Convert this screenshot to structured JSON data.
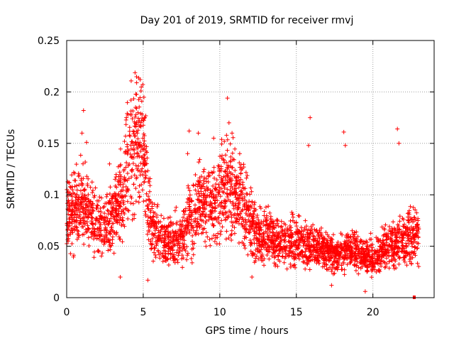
{
  "chart_data": {
    "type": "scatter",
    "title": "Day 201 of 2019, SRMTID for receiver rmvj",
    "xlabel": "GPS time / hours",
    "ylabel": "SRMTID / TECUs",
    "xlim": [
      0,
      24
    ],
    "ylim": [
      0,
      0.25
    ],
    "x_ticks": [
      0,
      5,
      10,
      15,
      20
    ],
    "x_tick_labels": [
      "0",
      "5",
      "10",
      "15",
      "20"
    ],
    "y_ticks": [
      0,
      0.05,
      0.1,
      0.15,
      0.2,
      0.25
    ],
    "y_tick_labels": [
      "0",
      "0.05",
      "0.1",
      "0.15",
      "0.2",
      "0.25"
    ],
    "grid": true,
    "marker": "plus",
    "color": "#ff0000",
    "trend": {
      "x": [
        0,
        0.5,
        1,
        1.5,
        2,
        2.5,
        3,
        3.5,
        4,
        4.5,
        5,
        5.5,
        6,
        6.5,
        7,
        7.5,
        8,
        8.5,
        9,
        9.5,
        10,
        10.5,
        11,
        11.5,
        12,
        12.5,
        13,
        13.5,
        14,
        14.5,
        15,
        15.5,
        16,
        16.5,
        17,
        17.5,
        18,
        18.5,
        19,
        19.5,
        20,
        20.5,
        21,
        21.5,
        22,
        22.5,
        23
      ],
      "y": [
        0.075,
        0.085,
        0.09,
        0.082,
        0.072,
        0.07,
        0.08,
        0.095,
        0.13,
        0.15,
        0.15,
        0.07,
        0.06,
        0.055,
        0.055,
        0.06,
        0.075,
        0.085,
        0.095,
        0.09,
        0.1,
        0.11,
        0.1,
        0.09,
        0.075,
        0.06,
        0.06,
        0.058,
        0.055,
        0.055,
        0.055,
        0.052,
        0.05,
        0.048,
        0.045,
        0.042,
        0.045,
        0.048,
        0.045,
        0.04,
        0.04,
        0.045,
        0.05,
        0.052,
        0.055,
        0.06,
        0.055
      ]
    },
    "highlights": [
      {
        "x": 1.1,
        "y": 0.182
      },
      {
        "x": 1.3,
        "y": 0.151
      },
      {
        "x": 1.0,
        "y": 0.16
      },
      {
        "x": 4.2,
        "y": 0.192
      },
      {
        "x": 4.8,
        "y": 0.212
      },
      {
        "x": 4.85,
        "y": 0.201
      },
      {
        "x": 4.5,
        "y": 0.185
      },
      {
        "x": 3.9,
        "y": 0.175
      },
      {
        "x": 5.1,
        "y": 0.175
      },
      {
        "x": 8.0,
        "y": 0.162
      },
      {
        "x": 8.6,
        "y": 0.16
      },
      {
        "x": 9.6,
        "y": 0.155
      },
      {
        "x": 10.5,
        "y": 0.194
      },
      {
        "x": 10.6,
        "y": 0.17
      },
      {
        "x": 10.8,
        "y": 0.16
      },
      {
        "x": 15.9,
        "y": 0.175
      },
      {
        "x": 15.8,
        "y": 0.148
      },
      {
        "x": 18.1,
        "y": 0.161
      },
      {
        "x": 18.2,
        "y": 0.148
      },
      {
        "x": 21.6,
        "y": 0.164
      },
      {
        "x": 21.7,
        "y": 0.15
      },
      {
        "x": 2.8,
        "y": 0.13
      },
      {
        "x": 7.9,
        "y": 0.14
      },
      {
        "x": 11.3,
        "y": 0.14
      },
      {
        "x": 3.5,
        "y": 0.02
      },
      {
        "x": 5.3,
        "y": 0.017
      },
      {
        "x": 19.5,
        "y": 0.006
      },
      {
        "x": 17.3,
        "y": 0.012
      },
      {
        "x": 12.1,
        "y": 0.02
      }
    ],
    "count": 3200,
    "end_marker": {
      "x": 22.7,
      "y": 0.0
    }
  }
}
